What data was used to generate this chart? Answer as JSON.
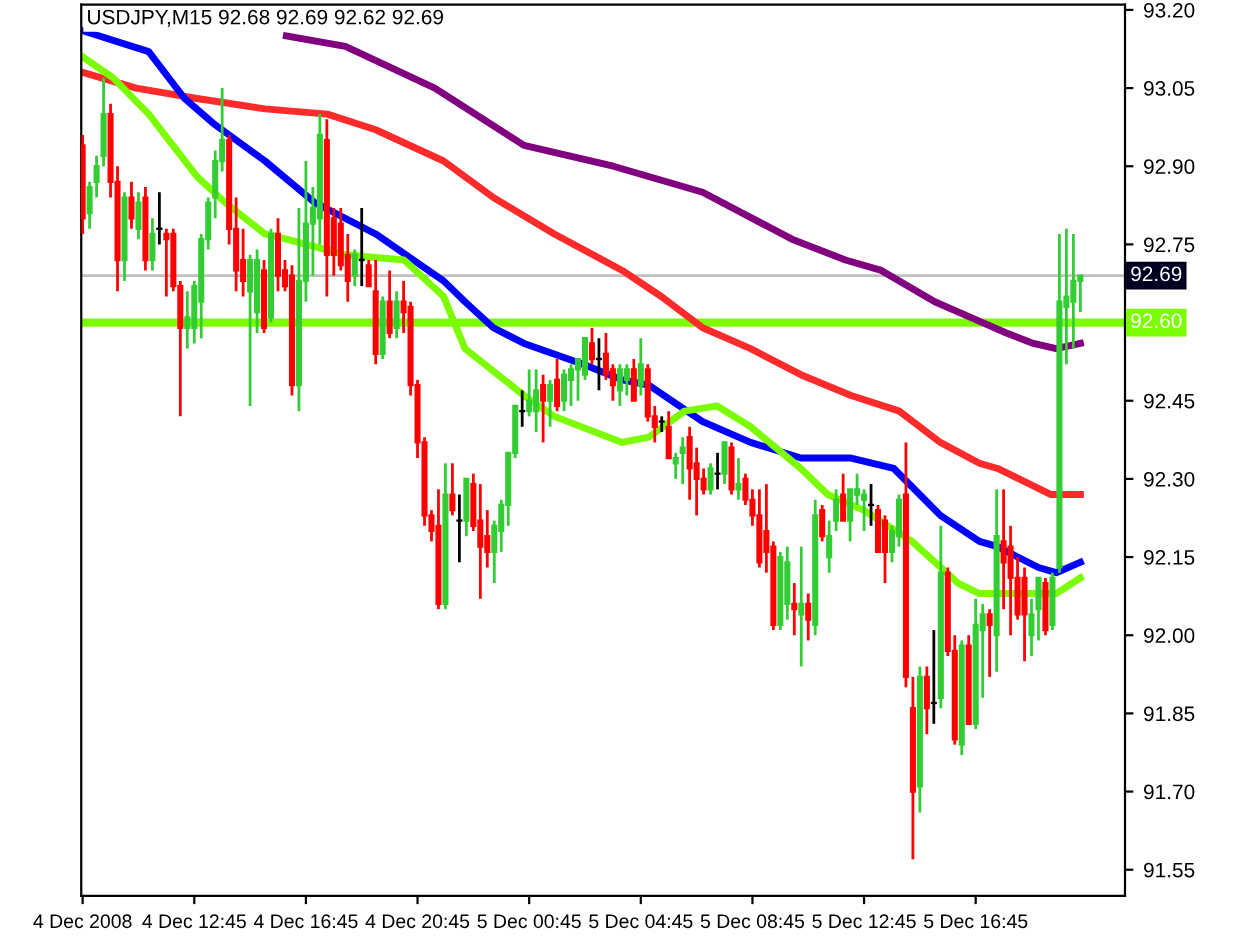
{
  "chart_data": {
    "type": "candlestick",
    "title": "USDJPY,M15 92.68 92.69 92.62 92.69",
    "x": [
      "2008-12-04T08:45",
      "2008-12-04T09:00",
      "2008-12-04T09:15",
      "2008-12-04T09:30",
      "2008-12-04T09:45",
      "2008-12-04T10:00",
      "2008-12-04T10:15",
      "2008-12-04T10:30",
      "2008-12-04T10:45",
      "2008-12-04T11:00",
      "2008-12-04T11:15",
      "2008-12-04T11:30",
      "2008-12-04T11:45",
      "2008-12-04T12:00",
      "2008-12-04T12:15",
      "2008-12-04T12:30",
      "2008-12-04T12:45",
      "2008-12-04T13:00",
      "2008-12-04T13:15",
      "2008-12-04T13:30",
      "2008-12-04T13:45",
      "2008-12-04T14:00",
      "2008-12-04T14:15",
      "2008-12-04T14:30",
      "2008-12-04T14:45",
      "2008-12-04T15:00",
      "2008-12-04T15:15",
      "2008-12-04T15:30",
      "2008-12-04T15:45",
      "2008-12-04T16:00",
      "2008-12-04T16:15",
      "2008-12-04T16:30",
      "2008-12-04T16:45",
      "2008-12-04T17:00",
      "2008-12-04T17:15",
      "2008-12-04T17:30",
      "2008-12-04T17:45",
      "2008-12-04T18:00",
      "2008-12-04T18:15",
      "2008-12-04T18:30",
      "2008-12-04T18:45",
      "2008-12-04T19:00",
      "2008-12-04T19:15",
      "2008-12-04T19:30",
      "2008-12-04T19:45",
      "2008-12-04T20:00",
      "2008-12-04T20:15",
      "2008-12-04T20:30",
      "2008-12-04T20:45",
      "2008-12-04T21:00",
      "2008-12-04T21:15",
      "2008-12-04T21:30",
      "2008-12-04T21:45",
      "2008-12-04T22:00",
      "2008-12-04T22:15",
      "2008-12-04T22:30",
      "2008-12-04T22:45",
      "2008-12-04T23:00",
      "2008-12-04T23:15",
      "2008-12-04T23:30",
      "2008-12-04T23:45",
      "2008-12-05T00:00",
      "2008-12-05T00:15",
      "2008-12-05T00:30",
      "2008-12-05T00:45",
      "2008-12-05T01:00",
      "2008-12-05T01:15",
      "2008-12-05T01:30",
      "2008-12-05T01:45",
      "2008-12-05T02:00",
      "2008-12-05T02:15",
      "2008-12-05T02:30",
      "2008-12-05T02:45",
      "2008-12-05T03:00",
      "2008-12-05T03:15",
      "2008-12-05T03:30",
      "2008-12-05T03:45",
      "2008-12-05T04:00",
      "2008-12-05T04:15",
      "2008-12-05T04:30",
      "2008-12-05T04:45",
      "2008-12-05T05:00",
      "2008-12-05T05:15",
      "2008-12-05T05:30",
      "2008-12-05T05:45",
      "2008-12-05T06:00",
      "2008-12-05T06:15",
      "2008-12-05T06:30",
      "2008-12-05T06:45",
      "2008-12-05T07:00",
      "2008-12-05T07:15",
      "2008-12-05T07:30",
      "2008-12-05T07:45",
      "2008-12-05T08:00",
      "2008-12-05T08:15",
      "2008-12-05T08:30",
      "2008-12-05T08:45",
      "2008-12-05T09:00",
      "2008-12-05T09:15",
      "2008-12-05T09:30",
      "2008-12-05T09:45",
      "2008-12-05T10:00",
      "2008-12-05T10:15",
      "2008-12-05T10:30",
      "2008-12-05T10:45",
      "2008-12-05T11:00",
      "2008-12-05T11:15",
      "2008-12-05T11:30",
      "2008-12-05T11:45",
      "2008-12-05T12:00",
      "2008-12-05T12:15",
      "2008-12-05T12:30",
      "2008-12-05T12:45",
      "2008-12-05T13:00",
      "2008-12-05T13:15",
      "2008-12-05T13:30",
      "2008-12-05T13:45",
      "2008-12-05T14:00",
      "2008-12-05T14:15",
      "2008-12-05T14:30",
      "2008-12-05T14:45",
      "2008-12-05T15:00",
      "2008-12-05T15:15",
      "2008-12-05T15:30",
      "2008-12-05T15:45",
      "2008-12-05T16:00",
      "2008-12-05T16:15",
      "2008-12-05T16:30",
      "2008-12-05T16:45",
      "2008-12-05T17:00",
      "2008-12-05T17:15",
      "2008-12-05T17:30",
      "2008-12-05T17:45",
      "2008-12-05T18:00",
      "2008-12-05T18:15",
      "2008-12-05T18:30",
      "2008-12-05T18:45",
      "2008-12-05T19:00",
      "2008-12-05T19:15",
      "2008-12-05T19:30",
      "2008-12-05T19:45",
      "2008-12-05T20:00",
      "2008-12-05T20:15",
      "2008-12-05T20:30"
    ],
    "ohlc": [
      [
        92.94,
        92.96,
        92.77,
        92.8
      ],
      [
        92.81,
        92.87,
        92.78,
        92.86
      ],
      [
        92.87,
        92.92,
        92.84,
        92.9
      ],
      [
        92.92,
        93.07,
        92.9,
        93.0
      ],
      [
        93.0,
        93.02,
        92.84,
        92.87
      ],
      [
        92.87,
        92.9,
        92.66,
        92.72
      ],
      [
        92.72,
        92.85,
        92.68,
        92.84
      ],
      [
        92.84,
        92.87,
        92.78,
        92.8
      ],
      [
        92.78,
        92.85,
        92.76,
        92.83
      ],
      [
        92.84,
        92.86,
        92.7,
        92.72
      ],
      [
        92.72,
        92.8,
        92.7,
        92.77
      ],
      [
        92.78,
        92.85,
        92.75,
        92.78
      ],
      [
        92.77,
        92.78,
        92.65,
        92.76
      ],
      [
        92.77,
        92.78,
        92.66,
        92.67
      ],
      [
        92.67,
        92.68,
        92.42,
        92.59
      ],
      [
        92.59,
        92.66,
        92.55,
        92.61
      ],
      [
        92.59,
        92.68,
        92.56,
        92.67
      ],
      [
        92.64,
        92.77,
        92.57,
        92.76
      ],
      [
        92.76,
        92.84,
        92.74,
        92.83
      ],
      [
        92.84,
        92.93,
        92.8,
        92.91
      ],
      [
        92.91,
        93.05,
        92.89,
        92.95
      ],
      [
        92.95,
        92.96,
        92.75,
        92.78
      ],
      [
        92.78,
        92.84,
        92.66,
        92.7
      ],
      [
        92.72,
        92.78,
        92.65,
        92.68
      ],
      [
        92.66,
        92.73,
        92.44,
        92.72
      ],
      [
        92.62,
        92.74,
        92.58,
        92.72
      ],
      [
        92.7,
        92.72,
        92.58,
        92.59
      ],
      [
        92.61,
        92.78,
        92.6,
        92.77
      ],
      [
        92.77,
        92.8,
        92.66,
        92.69
      ],
      [
        92.7,
        92.72,
        92.66,
        92.67
      ],
      [
        92.69,
        92.71,
        92.46,
        92.48
      ],
      [
        92.48,
        92.82,
        92.43,
        92.68
      ],
      [
        92.68,
        92.91,
        92.64,
        92.79
      ],
      [
        92.79,
        92.86,
        92.69,
        92.82
      ],
      [
        92.8,
        93.0,
        92.75,
        92.96
      ],
      [
        92.95,
        92.99,
        92.65,
        92.73
      ],
      [
        92.8,
        92.82,
        92.69,
        92.73
      ],
      [
        92.79,
        92.82,
        92.7,
        92.71
      ],
      [
        92.73,
        92.77,
        92.64,
        92.68
      ],
      [
        92.69,
        92.74,
        92.67,
        92.73
      ],
      [
        92.72,
        92.82,
        92.67,
        92.72
      ],
      [
        92.71,
        92.72,
        92.67,
        92.67
      ],
      [
        92.66,
        92.72,
        92.52,
        92.54
      ],
      [
        92.54,
        92.65,
        92.53,
        92.64
      ],
      [
        92.64,
        92.7,
        92.57,
        92.58
      ],
      [
        92.59,
        92.66,
        92.57,
        92.64
      ],
      [
        92.64,
        92.68,
        92.58,
        92.62
      ],
      [
        92.63,
        92.64,
        92.46,
        92.48
      ],
      [
        92.48,
        92.49,
        92.34,
        92.37
      ],
      [
        92.37,
        92.38,
        92.21,
        92.23
      ],
      [
        92.23,
        92.24,
        92.18,
        92.2
      ],
      [
        92.21,
        92.28,
        92.05,
        92.06
      ],
      [
        92.06,
        92.33,
        92.05,
        92.27
      ],
      [
        92.27,
        92.33,
        92.23,
        92.24
      ],
      [
        92.22,
        92.27,
        92.14,
        92.22
      ],
      [
        92.22,
        92.3,
        92.19,
        92.3
      ],
      [
        92.29,
        92.31,
        92.2,
        92.21
      ],
      [
        92.22,
        92.29,
        92.07,
        92.17
      ],
      [
        92.19,
        92.24,
        92.13,
        92.16
      ],
      [
        92.16,
        92.22,
        92.1,
        92.21
      ],
      [
        92.2,
        92.26,
        92.16,
        92.25
      ],
      [
        92.25,
        92.35,
        92.21,
        92.35
      ],
      [
        92.35,
        92.44,
        92.34,
        92.44
      ],
      [
        92.43,
        92.47,
        92.4,
        92.43
      ],
      [
        92.43,
        92.51,
        92.42,
        92.45
      ],
      [
        92.43,
        92.51,
        92.39,
        92.47
      ],
      [
        92.48,
        92.5,
        92.37,
        92.45
      ],
      [
        92.45,
        92.49,
        92.4,
        92.48
      ],
      [
        92.49,
        92.53,
        92.43,
        92.44
      ],
      [
        92.45,
        92.51,
        92.43,
        92.5
      ],
      [
        92.49,
        92.52,
        92.44,
        92.51
      ],
      [
        92.51,
        92.53,
        92.45,
        92.53
      ],
      [
        92.5,
        92.57,
        92.49,
        92.57
      ],
      [
        92.56,
        92.59,
        92.52,
        92.53
      ],
      [
        92.53,
        92.57,
        92.47,
        92.53
      ],
      [
        92.54,
        92.58,
        92.49,
        92.5
      ],
      [
        92.51,
        92.52,
        92.45,
        92.48
      ],
      [
        92.47,
        92.52,
        92.44,
        92.51
      ],
      [
        92.49,
        92.52,
        92.46,
        92.51
      ],
      [
        92.51,
        92.53,
        92.45,
        92.45
      ],
      [
        92.48,
        92.57,
        92.46,
        92.52
      ],
      [
        92.51,
        92.52,
        92.41,
        92.42
      ],
      [
        92.42,
        92.44,
        92.37,
        92.4
      ],
      [
        92.41,
        92.42,
        92.39,
        92.41
      ],
      [
        92.4,
        92.43,
        92.34,
        92.34
      ],
      [
        92.33,
        92.35,
        92.3,
        92.34
      ],
      [
        92.35,
        92.38,
        92.29,
        92.36
      ],
      [
        92.38,
        92.4,
        92.26,
        92.32
      ],
      [
        92.33,
        92.36,
        92.23,
        92.3
      ],
      [
        92.3,
        92.32,
        92.27,
        92.28
      ],
      [
        92.28,
        92.33,
        92.27,
        92.32
      ],
      [
        92.31,
        92.35,
        92.28,
        92.31
      ],
      [
        92.31,
        92.37,
        92.29,
        92.37
      ],
      [
        92.36,
        92.37,
        92.27,
        92.28
      ],
      [
        92.28,
        92.34,
        92.26,
        92.29
      ],
      [
        92.3,
        92.31,
        92.25,
        92.26
      ],
      [
        92.26,
        92.28,
        92.21,
        92.23
      ],
      [
        92.23,
        92.28,
        92.13,
        92.14
      ],
      [
        92.2,
        92.29,
        92.12,
        92.16
      ],
      [
        92.17,
        92.18,
        92.01,
        92.02
      ],
      [
        92.02,
        92.16,
        92.01,
        92.15
      ],
      [
        92.06,
        92.17,
        92.03,
        92.14
      ],
      [
        92.06,
        92.1,
        92.0,
        92.05
      ],
      [
        92.04,
        92.17,
        91.94,
        92.06
      ],
      [
        92.06,
        92.08,
        91.99,
        92.03
      ],
      [
        92.02,
        92.26,
        92.0,
        92.23
      ],
      [
        92.24,
        92.25,
        92.18,
        92.19
      ],
      [
        92.15,
        92.22,
        92.12,
        92.19
      ],
      [
        92.22,
        92.28,
        92.2,
        92.26
      ],
      [
        92.27,
        92.31,
        92.22,
        92.22
      ],
      [
        92.22,
        92.28,
        92.18,
        92.28
      ],
      [
        92.27,
        92.31,
        92.25,
        92.28
      ],
      [
        92.26,
        92.28,
        92.2,
        92.27
      ],
      [
        92.25,
        92.29,
        92.21,
        92.25
      ],
      [
        92.24,
        92.25,
        92.16,
        92.16
      ],
      [
        92.22,
        92.23,
        92.1,
        92.16
      ],
      [
        92.16,
        92.21,
        92.14,
        92.2
      ],
      [
        92.19,
        92.27,
        92.17,
        92.26
      ],
      [
        92.27,
        92.37,
        91.9,
        91.92
      ],
      [
        91.86,
        91.92,
        91.57,
        91.7
      ],
      [
        91.71,
        91.94,
        91.66,
        91.92
      ],
      [
        91.92,
        91.94,
        91.81,
        91.86
      ],
      [
        91.87,
        92.01,
        91.83,
        91.87
      ],
      [
        91.88,
        92.21,
        91.86,
        92.12
      ],
      [
        92.12,
        92.13,
        91.96,
        91.97
      ],
      [
        91.97,
        92.0,
        91.79,
        91.8
      ],
      [
        91.79,
        91.99,
        91.77,
        91.98
      ],
      [
        91.98,
        92.0,
        91.83,
        91.83
      ],
      [
        91.83,
        92.07,
        91.82,
        92.02
      ],
      [
        92.01,
        92.06,
        91.88,
        92.04
      ],
      [
        92.04,
        92.05,
        91.92,
        92.02
      ],
      [
        92.0,
        92.28,
        91.93,
        92.19
      ],
      [
        92.18,
        92.28,
        92.05,
        92.14
      ],
      [
        92.17,
        92.21,
        92.0,
        92.11
      ],
      [
        92.11,
        92.15,
        92.03,
        92.04
      ],
      [
        92.11,
        92.13,
        91.95,
        92.04
      ],
      [
        92.0,
        92.07,
        91.96,
        92.04
      ],
      [
        92.05,
        92.11,
        91.99,
        92.11
      ],
      [
        92.1,
        92.11,
        92.0,
        92.01
      ],
      [
        92.02,
        92.12,
        92.01,
        92.11
      ],
      [
        92.13,
        92.77,
        92.12,
        92.64
      ],
      [
        92.63,
        92.78,
        92.52,
        92.65
      ],
      [
        92.64,
        92.77,
        92.55,
        92.68
      ],
      [
        92.68,
        92.69,
        92.62,
        92.69
      ]
    ],
    "colors": [
      "#ff0000",
      "#32cd32",
      "#32cd32",
      "#32cd32",
      "#ff0000",
      "#ff0000",
      "#32cd32",
      "#ff0000",
      "#32cd32",
      "#ff0000",
      "#32cd32",
      "#000000",
      "#ff0000",
      "#ff0000",
      "#ff0000",
      "#32cd32",
      "#32cd32",
      "#32cd32",
      "#32cd32",
      "#32cd32",
      "#32cd32",
      "#ff0000",
      "#ff0000",
      "#ff0000",
      "#32cd32",
      "#32cd32",
      "#ff0000",
      "#32cd32",
      "#ff0000",
      "#ff0000",
      "#ff0000",
      "#32cd32",
      "#32cd32",
      "#32cd32",
      "#32cd32",
      "#ff0000",
      "#ff0000",
      "#ff0000",
      "#ff0000",
      "#32cd32",
      "#000000",
      "#ff0000",
      "#ff0000",
      "#32cd32",
      "#ff0000",
      "#32cd32",
      "#ff0000",
      "#ff0000",
      "#ff0000",
      "#ff0000",
      "#ff0000",
      "#ff0000",
      "#32cd32",
      "#ff0000",
      "#000000",
      "#32cd32",
      "#ff0000",
      "#ff0000",
      "#ff0000",
      "#32cd32",
      "#32cd32",
      "#32cd32",
      "#32cd32",
      "#000000",
      "#32cd32",
      "#32cd32",
      "#ff0000",
      "#32cd32",
      "#ff0000",
      "#32cd32",
      "#32cd32",
      "#32cd32",
      "#32cd32",
      "#ff0000",
      "#000000",
      "#ff0000",
      "#ff0000",
      "#32cd32",
      "#32cd32",
      "#ff0000",
      "#32cd32",
      "#ff0000",
      "#ff0000",
      "#000000",
      "#ff0000",
      "#32cd32",
      "#32cd32",
      "#ff0000",
      "#ff0000",
      "#ff0000",
      "#32cd32",
      "#000000",
      "#32cd32",
      "#ff0000",
      "#32cd32",
      "#ff0000",
      "#ff0000",
      "#ff0000",
      "#ff0000",
      "#ff0000",
      "#32cd32",
      "#32cd32",
      "#ff0000",
      "#32cd32",
      "#ff0000",
      "#32cd32",
      "#ff0000",
      "#32cd32",
      "#32cd32",
      "#ff0000",
      "#32cd32",
      "#32cd32",
      "#32cd32",
      "#000000",
      "#ff0000",
      "#ff0000",
      "#32cd32",
      "#32cd32",
      "#ff0000",
      "#ff0000",
      "#32cd32",
      "#ff0000",
      "#000000",
      "#32cd32",
      "#ff0000",
      "#ff0000",
      "#32cd32",
      "#ff0000",
      "#32cd32",
      "#32cd32",
      "#ff0000",
      "#32cd32",
      "#ff0000",
      "#ff0000",
      "#ff0000",
      "#ff0000",
      "#32cd32",
      "#32cd32",
      "#ff0000",
      "#32cd32",
      "#32cd32",
      "#32cd32",
      "#32cd32",
      "#32cd32"
    ],
    "series": [
      {
        "type": "line",
        "color": "#800080",
        "x": [
          "2008-12-04T16:03",
          "2008-12-04T18:10",
          "2008-12-04T21:22",
          "2008-12-05T00:34",
          "2008-12-05T03:46",
          "2008-12-05T06:58",
          "2008-12-05T10:10",
          "2008-12-05T12:05",
          "2008-12-05T13:22",
          "2008-12-05T15:17",
          "2008-12-05T16:34",
          "2008-12-05T17:51",
          "2008-12-05T18:49",
          "2008-12-05T19:38",
          "2008-12-05T20:30"
        ],
        "values": [
          93.15,
          93.13,
          93.05,
          92.94,
          92.9,
          92.85,
          92.76,
          92.72,
          92.7,
          92.64,
          92.61,
          92.58,
          92.56,
          92.55,
          92.56
        ]
      },
      {
        "type": "line",
        "color": "#ff2a2a",
        "x": [
          "2008-12-04T08:45",
          "2008-12-04T10:40",
          "2008-12-04T12:51",
          "2008-12-04T15:17",
          "2008-12-04T17:31",
          "2008-12-04T19:15",
          "2008-12-04T21:41",
          "2008-12-04T23:28",
          "2008-12-05T01:39",
          "2008-12-05T04:05",
          "2008-12-05T05:29",
          "2008-12-05T06:58",
          "2008-12-05T08:41",
          "2008-12-05T10:29",
          "2008-12-05T12:17",
          "2008-12-05T14:01",
          "2008-12-05T15:29",
          "2008-12-05T16:53",
          "2008-12-05T17:32",
          "2008-12-05T19:27",
          "2008-12-05T20:30"
        ],
        "values": [
          93.08,
          93.05,
          93.03,
          93.01,
          93.0,
          92.97,
          92.91,
          92.84,
          92.77,
          92.7,
          92.65,
          92.59,
          92.55,
          92.5,
          92.46,
          92.43,
          92.37,
          92.33,
          92.32,
          92.27,
          92.27
        ]
      },
      {
        "type": "line",
        "color": "#0000ff",
        "x": [
          "2008-12-04T08:45",
          "2008-12-04T11:07",
          "2008-12-04T12:24",
          "2008-12-04T13:29",
          "2008-12-04T15:17",
          "2008-12-04T17:04",
          "2008-12-04T19:15",
          "2008-12-04T21:41",
          "2008-12-04T22:27",
          "2008-12-04T23:28",
          "2008-12-05T00:34",
          "2008-12-05T02:41",
          "2008-12-05T04:05",
          "2008-12-05T05:02",
          "2008-12-05T06:58",
          "2008-12-05T08:41",
          "2008-12-05T10:29",
          "2008-12-05T12:17",
          "2008-12-05T13:49",
          "2008-12-05T15:29",
          "2008-12-05T16:53",
          "2008-12-05T17:32",
          "2008-12-05T19:00",
          "2008-12-05T19:38",
          "2008-12-05T20:30"
        ],
        "values": [
          93.16,
          93.12,
          93.03,
          92.98,
          92.91,
          92.83,
          92.77,
          92.68,
          92.64,
          92.59,
          92.56,
          92.52,
          92.49,
          92.48,
          92.41,
          92.37,
          92.34,
          92.34,
          92.32,
          92.23,
          92.18,
          92.17,
          92.13,
          92.12,
          92.14
        ]
      },
      {
        "type": "line",
        "color": "#7cfc00",
        "x": [
          "2008-12-04T08:45",
          "2008-12-04T09:50",
          "2008-12-04T11:07",
          "2008-12-04T12:51",
          "2008-12-04T13:52",
          "2008-12-04T15:17",
          "2008-12-04T16:03",
          "2008-12-04T18:10",
          "2008-12-04T20:16",
          "2008-12-04T21:41",
          "2008-12-04T22:27",
          "2008-12-05T00:34",
          "2008-12-05T01:39",
          "2008-12-05T04:05",
          "2008-12-05T05:02",
          "2008-12-05T06:19",
          "2008-12-05T07:29",
          "2008-12-05T08:41",
          "2008-12-05T10:29",
          "2008-12-05T11:27",
          "2008-12-05T12:44",
          "2008-12-05T14:28",
          "2008-12-05T16:07",
          "2008-12-05T16:53",
          "2008-12-05T18:49",
          "2008-12-05T19:38",
          "2008-12-05T20:30"
        ],
        "values": [
          93.11,
          93.07,
          93.0,
          92.88,
          92.83,
          92.77,
          92.76,
          92.73,
          92.72,
          92.65,
          92.55,
          92.46,
          92.42,
          92.37,
          92.38,
          92.43,
          92.44,
          92.4,
          92.32,
          92.27,
          92.24,
          92.18,
          92.1,
          92.08,
          92.08,
          92.08,
          92.11
        ]
      }
    ],
    "ref_lines": [
      {
        "axis": "y",
        "value": 92.6,
        "label": "92.60",
        "color": "#7cfc00"
      },
      {
        "axis": "y",
        "value": 92.69,
        "label": "92.69",
        "color": "#c0c0c0"
      }
    ],
    "xlim": [
      "2008-12-04T08:42",
      "2008-12-05T22:06"
    ],
    "ylim": [
      91.5,
      93.21
    ],
    "xticks": [
      {
        "value": "2008-12-04T08:45",
        "label": "4 Dec 2008"
      },
      {
        "value": "2008-12-04T12:45",
        "label": "4 Dec 12:45"
      },
      {
        "value": "2008-12-04T16:45",
        "label": "4 Dec 16:45"
      },
      {
        "value": "2008-12-04T20:45",
        "label": "4 Dec 20:45"
      },
      {
        "value": "2008-12-05T00:45",
        "label": "5 Dec 00:45"
      },
      {
        "value": "2008-12-05T04:45",
        "label": "5 Dec 04:45"
      },
      {
        "value": "2008-12-05T08:45",
        "label": "5 Dec 08:45"
      },
      {
        "value": "2008-12-05T12:45",
        "label": "5 Dec 12:45"
      },
      {
        "value": "2008-12-05T16:45",
        "label": "5 Dec 16:45"
      }
    ],
    "yticks": [
      {
        "value": 93.2,
        "label": "93.20"
      },
      {
        "value": 93.05,
        "label": "93.05"
      },
      {
        "value": 92.9,
        "label": "92.90"
      },
      {
        "value": 92.75,
        "label": "92.75"
      },
      {
        "value": 92.6,
        "label": null
      },
      {
        "value": 92.45,
        "label": "92.45"
      },
      {
        "value": 92.3,
        "label": "92.30"
      },
      {
        "value": 92.15,
        "label": "92.15"
      },
      {
        "value": 92.0,
        "label": "92.00"
      },
      {
        "value": 91.85,
        "label": "91.85"
      },
      {
        "value": 91.7,
        "label": "91.70"
      },
      {
        "value": 91.55,
        "label": "91.55"
      }
    ],
    "grid": false
  }
}
